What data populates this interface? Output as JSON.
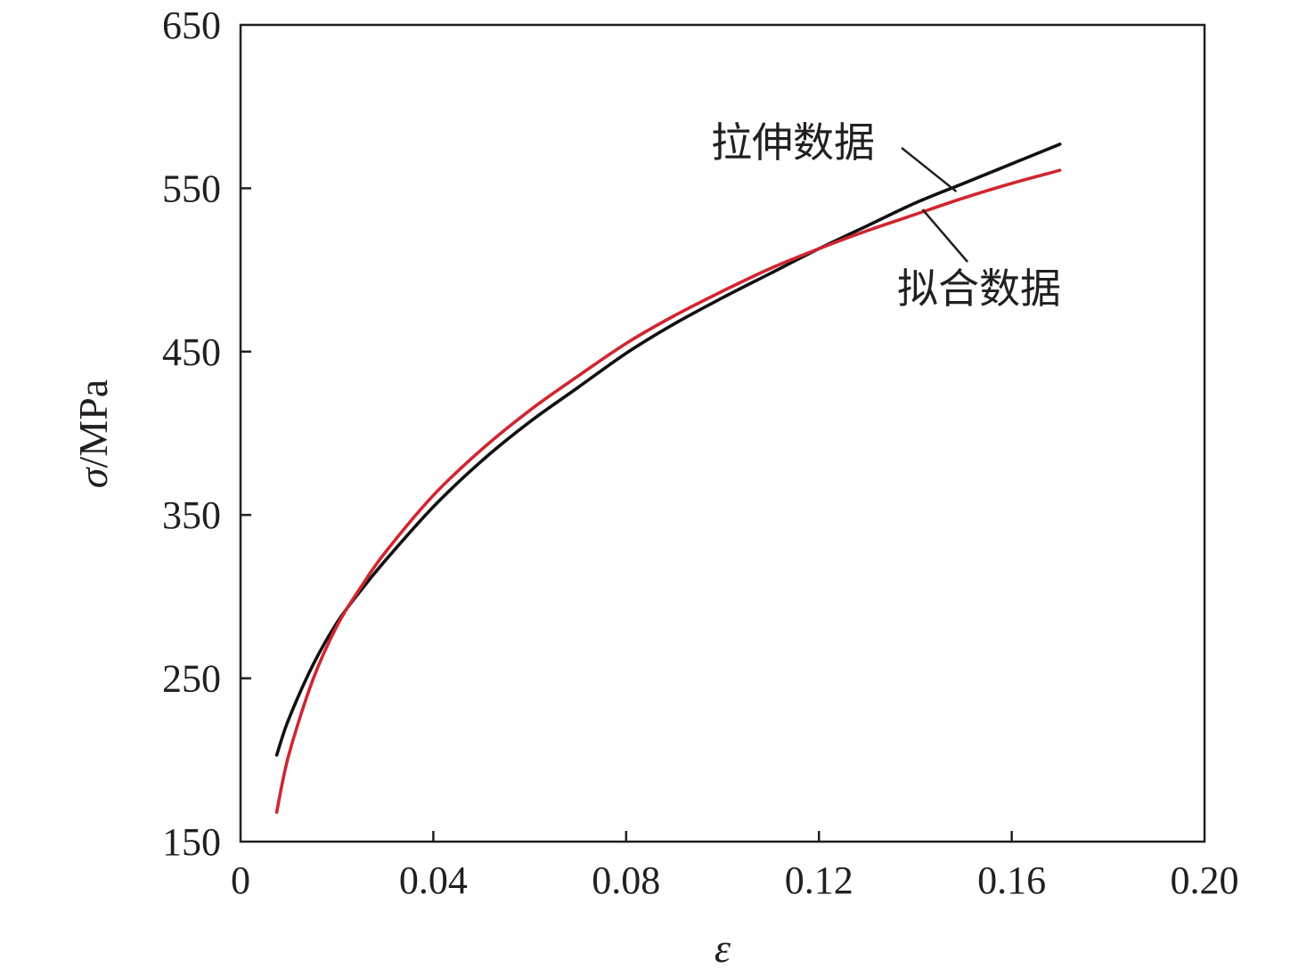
{
  "chart_data": {
    "type": "line",
    "xlabel": "ε",
    "ylabel_symbol": "σ",
    "ylabel_unit": "/MPa",
    "xlim": [
      0,
      0.2
    ],
    "ylim": [
      150,
      650
    ],
    "x_ticks": [
      0,
      0.04,
      0.08,
      0.12,
      0.16,
      0.2
    ],
    "x_tick_labels": [
      "0",
      "0.04",
      "0.08",
      "0.12",
      "0.16",
      "0.20"
    ],
    "y_ticks": [
      150,
      250,
      350,
      450,
      550,
      650
    ],
    "y_tick_labels": [
      "150",
      "250",
      "350",
      "450",
      "550",
      "650"
    ],
    "grid": false,
    "colors": {
      "tensile": "#111111",
      "fit": "#d02630",
      "axis": "#231f20"
    },
    "series": [
      {
        "name": "拉伸数据",
        "x": [
          0.0075,
          0.01,
          0.015,
          0.02,
          0.025,
          0.03,
          0.04,
          0.05,
          0.06,
          0.07,
          0.08,
          0.09,
          0.1,
          0.11,
          0.12,
          0.13,
          0.14,
          0.15,
          0.16,
          0.17
        ],
        "y": [
          203,
          225,
          258,
          284,
          304,
          322,
          355,
          383,
          407,
          428,
          449,
          467,
          483,
          498,
          513,
          527,
          541,
          553,
          565,
          577
        ]
      },
      {
        "name": "拟合数据",
        "x": [
          0.0075,
          0.01,
          0.015,
          0.02,
          0.025,
          0.03,
          0.04,
          0.05,
          0.06,
          0.07,
          0.08,
          0.09,
          0.1,
          0.11,
          0.12,
          0.13,
          0.14,
          0.15,
          0.16,
          0.17
        ],
        "y": [
          168,
          203,
          249,
          282,
          306,
          327,
          362,
          390,
          414,
          435,
          455,
          472,
          487,
          501,
          513,
          524,
          534,
          544,
          553,
          561
        ]
      }
    ],
    "annotations": [
      {
        "text": "拉伸数据",
        "series": 0,
        "point_x": 0.1485,
        "point_y": 548
      },
      {
        "text": "拟合数据",
        "series": 1,
        "point_x": 0.1415,
        "point_y": 537
      }
    ]
  }
}
